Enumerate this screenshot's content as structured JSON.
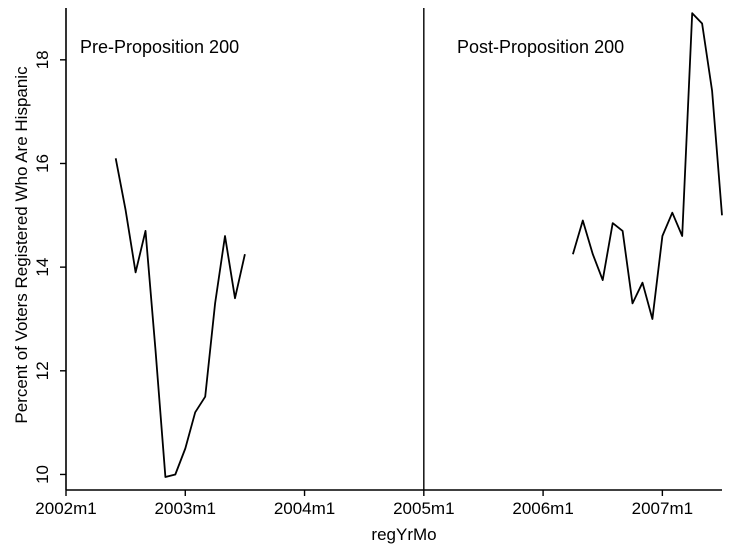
{
  "chart_data": {
    "type": "line",
    "xlabel": "regYrMo",
    "ylabel": "Percent of Voters Registered Who Are Hispanic",
    "x_ticks": [
      "2002m1",
      "2003m1",
      "2004m1",
      "2005m1",
      "2006m1",
      "2007m1"
    ],
    "y_ticks": [
      "10",
      "12",
      "14",
      "16",
      "18"
    ],
    "xlim": [
      "2002-01",
      "2007-07"
    ],
    "ylim": [
      9.7,
      19.0
    ],
    "grid": false,
    "vertical_line_at": "2005-01",
    "annotations": [
      "Pre-Proposition 200",
      "Post-Proposition 200"
    ],
    "series": [
      {
        "values_x": [
          "2002-06",
          "2002-07",
          "2002-08",
          "2002-09",
          "2002-10",
          "2002-11",
          "2002-12",
          "2003-01",
          "2003-02",
          "2003-03",
          "2003-04",
          "2003-05",
          "2003-06",
          "2003-07"
        ],
        "values_y": [
          16.1,
          15.1,
          13.9,
          14.7,
          12.4,
          9.95,
          10.0,
          10.5,
          11.2,
          11.5,
          13.3,
          14.6,
          13.4,
          14.25
        ]
      },
      {
        "values_x": [
          "2006-04",
          "2006-05",
          "2006-06",
          "2006-07",
          "2006-08",
          "2006-09",
          "2006-10",
          "2006-11",
          "2006-12",
          "2007-01",
          "2007-02",
          "2007-03",
          "2007-04",
          "2007-05",
          "2007-06",
          "2007-07"
        ],
        "values_y": [
          14.25,
          14.9,
          14.25,
          13.75,
          14.85,
          14.7,
          13.3,
          13.7,
          13.0,
          14.6,
          15.05,
          14.6,
          18.9,
          18.7,
          17.4,
          15.0
        ]
      }
    ]
  }
}
